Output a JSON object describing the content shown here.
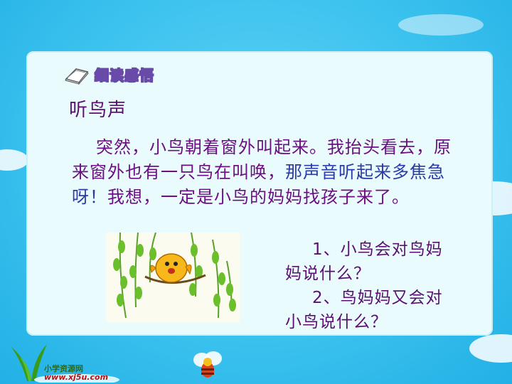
{
  "header": {
    "label": "细读感悟",
    "icon": "book-icon"
  },
  "section_title": "听鸟声",
  "paragraph": {
    "part1": "突然，小鸟朝着窗外叫起来。我抬头看去，原来窗外也有一只鸟在叫唤，",
    "part2": "那声音听起来多焦急呀！",
    "part3": "我想，一定是小鸟的妈妈找孩子来了。"
  },
  "questions": {
    "q1": "1、小鸟会对鸟妈妈说什么？",
    "q2": "2、鸟妈妈又会对小鸟说什么？"
  },
  "footer": {
    "site_name": "小学资源网",
    "site_url": "www.xj5u.com"
  },
  "colors": {
    "background": "#3cc2ee",
    "panel": "#e9fbfc",
    "text_purple": "#6a1080",
    "text_blue": "#2a3aa8"
  }
}
